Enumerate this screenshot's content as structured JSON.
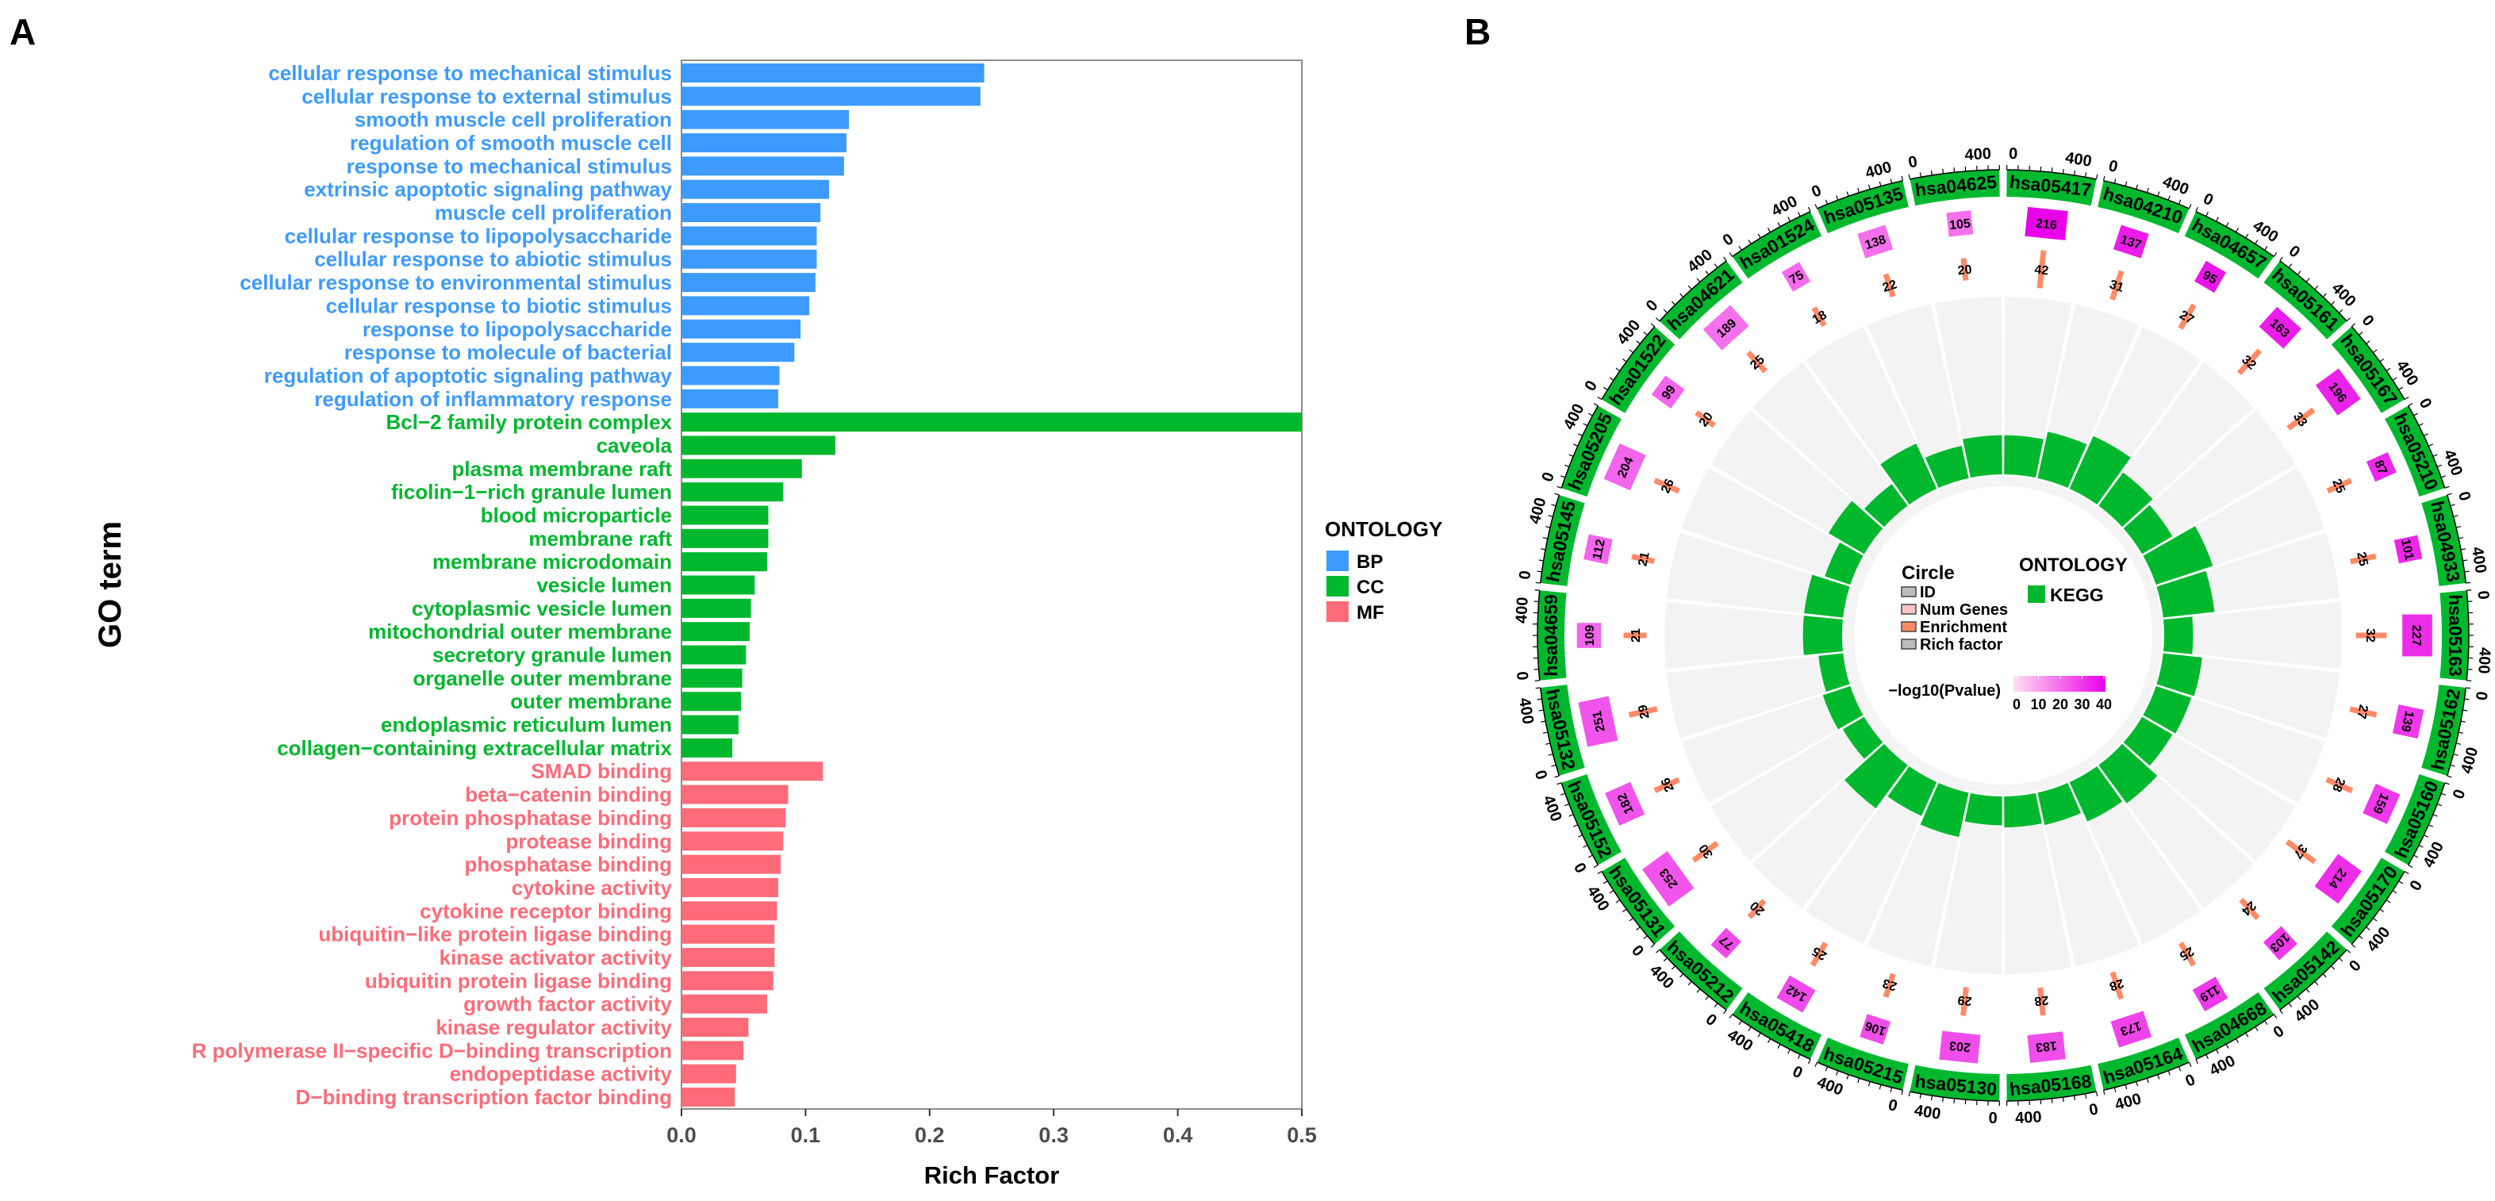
{
  "panel_labels": {
    "a": "A",
    "b": "B"
  },
  "chart_data": [
    {
      "type": "bar",
      "orientation": "horizontal",
      "title": "",
      "xlabel": "Rich Factor",
      "ylabel": "GO term",
      "xlim": [
        0,
        0.5
      ],
      "xticks": [
        "0.0",
        "0.1",
        "0.2",
        "0.3",
        "0.4",
        "0.5"
      ],
      "grid": false,
      "legend": {
        "title": "ONTOLOGY",
        "position": "right",
        "entries": [
          {
            "label": "BP",
            "color": "#3d9bff"
          },
          {
            "label": "CC",
            "color": "#00b82e"
          },
          {
            "label": "MF",
            "color": "#ff6b78"
          }
        ]
      },
      "categories": [
        {
          "term": "cellular response to mechanical stimulus",
          "ontology": "BP",
          "value": 0.244
        },
        {
          "term": "cellular response to external stimulus",
          "ontology": "BP",
          "value": 0.241
        },
        {
          "term": "smooth muscle cell proliferation",
          "ontology": "BP",
          "value": 0.135
        },
        {
          "term": "regulation of smooth muscle cell",
          "ontology": "BP",
          "value": 0.133
        },
        {
          "term": "response to mechanical stimulus",
          "ontology": "BP",
          "value": 0.131
        },
        {
          "term": "extrinsic apoptotic signaling pathway",
          "ontology": "BP",
          "value": 0.119
        },
        {
          "term": "muscle cell proliferation",
          "ontology": "BP",
          "value": 0.112
        },
        {
          "term": "cellular response to lipopolysaccharide",
          "ontology": "BP",
          "value": 0.109
        },
        {
          "term": "cellular response to abiotic stimulus",
          "ontology": "BP",
          "value": 0.109
        },
        {
          "term": "cellular response to environmental stimulus",
          "ontology": "BP",
          "value": 0.108
        },
        {
          "term": "cellular response to biotic stimulus",
          "ontology": "BP",
          "value": 0.103
        },
        {
          "term": "response to lipopolysaccharide",
          "ontology": "BP",
          "value": 0.096
        },
        {
          "term": "response to molecule of bacterial",
          "ontology": "BP",
          "value": 0.091
        },
        {
          "term": "regulation of apoptotic signaling pathway",
          "ontology": "BP",
          "value": 0.079
        },
        {
          "term": "regulation of inflammatory response",
          "ontology": "BP",
          "value": 0.078
        },
        {
          "term": "Bcl−2 family protein complex",
          "ontology": "CC",
          "value": 0.5
        },
        {
          "term": "caveola",
          "ontology": "CC",
          "value": 0.124
        },
        {
          "term": "plasma membrane raft",
          "ontology": "CC",
          "value": 0.097
        },
        {
          "term": "ficolin−1−rich granule lumen",
          "ontology": "CC",
          "value": 0.082
        },
        {
          "term": "blood microparticle",
          "ontology": "CC",
          "value": 0.07
        },
        {
          "term": "membrane raft",
          "ontology": "CC",
          "value": 0.07
        },
        {
          "term": "membrane microdomain",
          "ontology": "CC",
          "value": 0.069
        },
        {
          "term": "vesicle lumen",
          "ontology": "CC",
          "value": 0.059
        },
        {
          "term": "cytoplasmic vesicle lumen",
          "ontology": "CC",
          "value": 0.056
        },
        {
          "term": "mitochondrial outer membrane",
          "ontology": "CC",
          "value": 0.055
        },
        {
          "term": "secretory granule lumen",
          "ontology": "CC",
          "value": 0.052
        },
        {
          "term": "organelle outer membrane",
          "ontology": "CC",
          "value": 0.049
        },
        {
          "term": "outer membrane",
          "ontology": "CC",
          "value": 0.048
        },
        {
          "term": "endoplasmic reticulum lumen",
          "ontology": "CC",
          "value": 0.046
        },
        {
          "term": "collagen−containing extracellular matrix",
          "ontology": "CC",
          "value": 0.041
        },
        {
          "term": "SMAD binding",
          "ontology": "MF",
          "value": 0.114
        },
        {
          "term": "beta−catenin binding",
          "ontology": "MF",
          "value": 0.086
        },
        {
          "term": "protein phosphatase binding",
          "ontology": "MF",
          "value": 0.084
        },
        {
          "term": "protease binding",
          "ontology": "MF",
          "value": 0.082
        },
        {
          "term": "phosphatase binding",
          "ontology": "MF",
          "value": 0.08
        },
        {
          "term": "cytokine activity",
          "ontology": "MF",
          "value": 0.078
        },
        {
          "term": "cytokine receptor binding",
          "ontology": "MF",
          "value": 0.077
        },
        {
          "term": "ubiquitin−like protein ligase binding",
          "ontology": "MF",
          "value": 0.075
        },
        {
          "term": "kinase activator activity",
          "ontology": "MF",
          "value": 0.075
        },
        {
          "term": "ubiquitin protein ligase binding",
          "ontology": "MF",
          "value": 0.074
        },
        {
          "term": "growth factor activity",
          "ontology": "MF",
          "value": 0.069
        },
        {
          "term": "kinase regulator activity",
          "ontology": "MF",
          "value": 0.054
        },
        {
          "term": "R polymerase II−specific D−binding transcription",
          "ontology": "MF",
          "value": 0.05
        },
        {
          "term": "endopeptidase activity",
          "ontology": "MF",
          "value": 0.044
        },
        {
          "term": "D−binding transcription factor binding",
          "ontology": "MF",
          "value": 0.043
        }
      ]
    },
    {
      "type": "circos",
      "title": "",
      "id_axis_ticks": [
        "0",
        "400"
      ],
      "legend_circle": {
        "title": "Circle",
        "entries": [
          {
            "label": "ID",
            "color": "#bdbdbd"
          },
          {
            "label": "Num Genes",
            "color": "#ffc4c8"
          },
          {
            "label": "Enrichment",
            "color": "#ff8a68"
          },
          {
            "label": "Rich factor",
            "color": "#bdbdbd"
          }
        ]
      },
      "legend_ontology": {
        "title": "ONTOLOGY",
        "entries": [
          {
            "label": "KEGG",
            "color": "#00b82e"
          }
        ]
      },
      "legend_pvalue": {
        "title": "−log10(Pvalue)",
        "ticks": [
          "0",
          "10",
          "20",
          "30",
          "40"
        ],
        "range": [
          0,
          40
        ],
        "low_color": "#ffe0f0",
        "high_color": "#e800e8"
      },
      "sectors": [
        {
          "id": "hsa05417",
          "num_genes": "216",
          "enrichment": "42",
          "neg_log10_p": 40,
          "rich_factor": 0.19
        },
        {
          "id": "hsa04210",
          "num_genes": "137",
          "enrichment": "31",
          "neg_log10_p": 35,
          "rich_factor": 0.23
        },
        {
          "id": "hsa04657",
          "num_genes": "95",
          "enrichment": "27",
          "neg_log10_p": 36,
          "rich_factor": 0.28
        },
        {
          "id": "hsa05161",
          "num_genes": "163",
          "enrichment": "32",
          "neg_log10_p": 35,
          "rich_factor": 0.2
        },
        {
          "id": "hsa05167",
          "num_genes": "196",
          "enrichment": "33",
          "neg_log10_p": 34,
          "rich_factor": 0.17
        },
        {
          "id": "hsa05210",
          "num_genes": "87",
          "enrichment": "25",
          "neg_log10_p": 33,
          "rich_factor": 0.29
        },
        {
          "id": "hsa04933",
          "num_genes": "101",
          "enrichment": "25",
          "neg_log10_p": 33,
          "rich_factor": 0.25
        },
        {
          "id": "hsa05163",
          "num_genes": "227",
          "enrichment": "32",
          "neg_log10_p": 32,
          "rich_factor": 0.14
        },
        {
          "id": "hsa05162",
          "num_genes": "139",
          "enrichment": "27",
          "neg_log10_p": 30,
          "rich_factor": 0.19
        },
        {
          "id": "hsa05160",
          "num_genes": "159",
          "enrichment": "28",
          "neg_log10_p": 30,
          "rich_factor": 0.18
        },
        {
          "id": "hsa05170",
          "num_genes": "214",
          "enrichment": "37",
          "neg_log10_p": 32,
          "rich_factor": 0.17
        },
        {
          "id": "hsa05142",
          "num_genes": "103",
          "enrichment": "24",
          "neg_log10_p": 30,
          "rich_factor": 0.23
        },
        {
          "id": "hsa04668",
          "num_genes": "119",
          "enrichment": "25",
          "neg_log10_p": 30,
          "rich_factor": 0.21
        },
        {
          "id": "hsa05164",
          "num_genes": "173",
          "enrichment": "28",
          "neg_log10_p": 28,
          "rich_factor": 0.16
        },
        {
          "id": "hsa05168",
          "num_genes": "183",
          "enrichment": "28",
          "neg_log10_p": 26,
          "rich_factor": 0.15
        },
        {
          "id": "hsa05130",
          "num_genes": "203",
          "enrichment": "29",
          "neg_log10_p": 26,
          "rich_factor": 0.14
        },
        {
          "id": "hsa05215",
          "num_genes": "106",
          "enrichment": "23",
          "neg_log10_p": 26,
          "rich_factor": 0.22
        },
        {
          "id": "hsa05418",
          "num_genes": "142",
          "enrichment": "25",
          "neg_log10_p": 27,
          "rich_factor": 0.18
        },
        {
          "id": "hsa05212",
          "num_genes": "77",
          "enrichment": "20",
          "neg_log10_p": 27,
          "rich_factor": 0.26
        },
        {
          "id": "hsa05131",
          "num_genes": "253",
          "enrichment": "30",
          "neg_log10_p": 25,
          "rich_factor": 0.12
        },
        {
          "id": "hsa05152",
          "num_genes": "182",
          "enrichment": "26",
          "neg_log10_p": 25,
          "rich_factor": 0.14
        },
        {
          "id": "hsa05132",
          "num_genes": "251",
          "enrichment": "29",
          "neg_log10_p": 25,
          "rich_factor": 0.12
        },
        {
          "id": "hsa04659",
          "num_genes": "109",
          "enrichment": "21",
          "neg_log10_p": 22,
          "rich_factor": 0.19
        },
        {
          "id": "hsa05145",
          "num_genes": "112",
          "enrichment": "21",
          "neg_log10_p": 22,
          "rich_factor": 0.19
        },
        {
          "id": "hsa05205",
          "num_genes": "204",
          "enrichment": "26",
          "neg_log10_p": 22,
          "rich_factor": 0.13
        },
        {
          "id": "hsa01522",
          "num_genes": "99",
          "enrichment": "20",
          "neg_log10_p": 22,
          "rich_factor": 0.2
        },
        {
          "id": "hsa04621",
          "num_genes": "189",
          "enrichment": "25",
          "neg_log10_p": 20,
          "rich_factor": 0.13
        },
        {
          "id": "hsa01524",
          "num_genes": "75",
          "enrichment": "18",
          "neg_log10_p": 21,
          "rich_factor": 0.24
        },
        {
          "id": "hsa05135",
          "num_genes": "138",
          "enrichment": "22",
          "neg_log10_p": 20,
          "rich_factor": 0.16
        },
        {
          "id": "hsa04625",
          "num_genes": "105",
          "enrichment": "20",
          "neg_log10_p": 20,
          "rich_factor": 0.19
        }
      ]
    }
  ]
}
